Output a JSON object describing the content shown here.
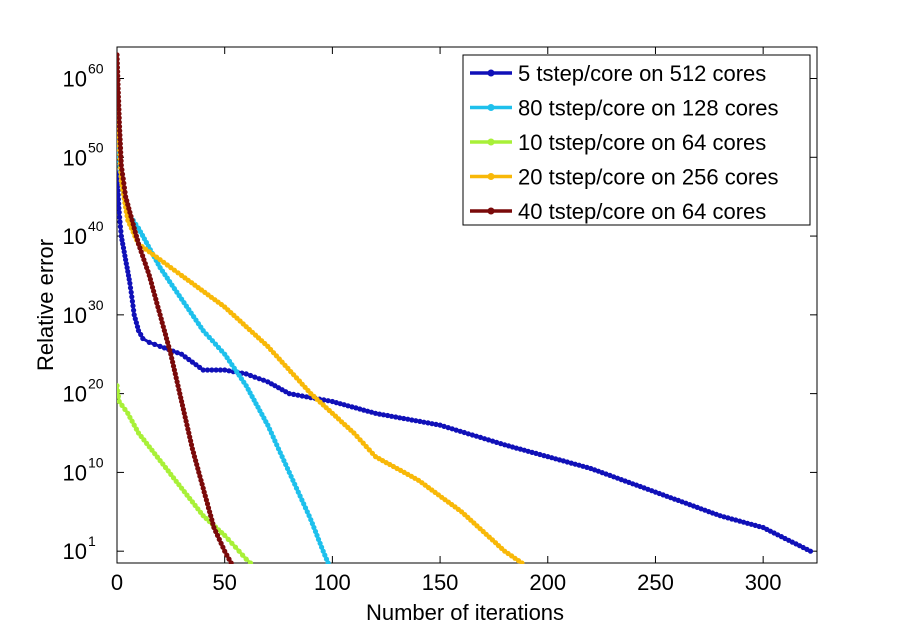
{
  "chart_data": {
    "type": "line",
    "xlabel": "Number of iterations",
    "ylabel": "Relative error",
    "yscale": "log",
    "xlim": [
      0,
      325
    ],
    "ylim_log10": [
      -1.5,
      64
    ],
    "grid": false,
    "legend_position": "top-right",
    "x_ticks": [
      {
        "value": 0,
        "label": "0"
      },
      {
        "value": 50,
        "label": "50"
      },
      {
        "value": 100,
        "label": "100"
      },
      {
        "value": 150,
        "label": "150"
      },
      {
        "value": 200,
        "label": "200"
      },
      {
        "value": 250,
        "label": "250"
      },
      {
        "value": 300,
        "label": "300"
      }
    ],
    "y_ticks": [
      {
        "exp": 60,
        "base": "10",
        "sup": "60"
      },
      {
        "exp": 50,
        "base": "10",
        "sup": "50"
      },
      {
        "exp": 40,
        "base": "10",
        "sup": "40"
      },
      {
        "exp": 30,
        "base": "10",
        "sup": "30"
      },
      {
        "exp": 20,
        "base": "10",
        "sup": "20"
      },
      {
        "exp": 10,
        "base": "10",
        "sup": "10"
      },
      {
        "exp": 0,
        "base": "10",
        "sup": "1"
      }
    ],
    "series": [
      {
        "name": "5 tstep/core on 512 cores",
        "color": "#1010b8",
        "x": [
          0,
          1,
          2,
          4,
          6,
          8,
          10,
          12,
          15,
          20,
          30,
          40,
          50,
          60,
          70,
          80,
          90,
          100,
          120,
          150,
          180,
          200,
          220,
          250,
          280,
          300,
          322
        ],
        "log10_y": [
          48,
          43,
          40,
          37,
          34,
          30,
          28,
          27,
          26.5,
          26,
          25,
          23,
          23,
          22.5,
          21.5,
          20,
          19.5,
          19,
          17.5,
          16,
          13.5,
          12,
          10.5,
          7.5,
          4.5,
          3,
          0
        ]
      },
      {
        "name": "80 tstep/core on 128 cores",
        "color": "#1ec0ec",
        "x": [
          0,
          1,
          2,
          5,
          10,
          20,
          30,
          40,
          50,
          60,
          70,
          80,
          90,
          95,
          98
        ],
        "log10_y": [
          53,
          50,
          47,
          43,
          41,
          36,
          32,
          28,
          25,
          21,
          16,
          10,
          4,
          0.5,
          -1.5
        ]
      },
      {
        "name": "10 tstep/core on 64 cores",
        "color": "#a8f038",
        "x": [
          0,
          1,
          5,
          10,
          20,
          30,
          40,
          50,
          55,
          60,
          62
        ],
        "log10_y": [
          21,
          19,
          17.5,
          15,
          11.5,
          8,
          4.5,
          2,
          0.5,
          -1,
          -1.5
        ]
      },
      {
        "name": "20 tstep/core on 256 cores",
        "color": "#f8b808",
        "x": [
          0,
          1,
          2,
          5,
          10,
          20,
          30,
          50,
          70,
          90,
          110,
          120,
          140,
          160,
          180,
          188
        ],
        "log10_y": [
          58,
          52,
          47,
          42,
          39,
          37,
          35,
          31,
          26,
          20,
          15,
          12,
          9,
          5,
          0,
          -1.5
        ]
      },
      {
        "name": "40 tstep/core on 64 cores",
        "color": "#7a0a0a",
        "x": [
          0,
          1,
          2,
          4,
          6,
          10,
          15,
          20,
          25,
          30,
          35,
          40,
          45,
          50,
          53
        ],
        "log10_y": [
          63,
          55,
          49,
          45,
          43,
          39,
          35,
          30,
          25,
          19,
          13,
          8,
          3,
          0,
          -1.5
        ]
      }
    ]
  }
}
